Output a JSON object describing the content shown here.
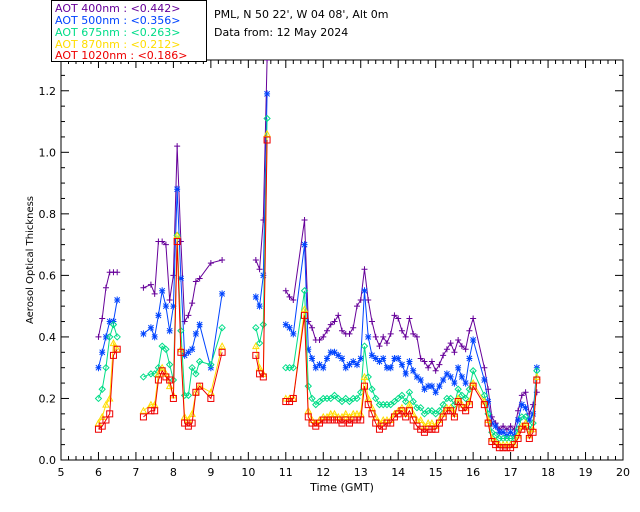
{
  "header": {
    "site": "PML, N 50 22', W 04 08', Alt 0m",
    "date": "Data from: 12 May 2024"
  },
  "chart_data": {
    "type": "line",
    "xlabel": "Time (GMT)",
    "ylabel": "Aerosol Optical Thickness",
    "xlim": [
      5,
      20
    ],
    "ylim": [
      0,
      1.3
    ],
    "xticks": [
      5,
      6,
      7,
      8,
      9,
      10,
      11,
      12,
      13,
      14,
      15,
      16,
      17,
      18,
      19,
      20
    ],
    "yticks": [
      0.0,
      0.2,
      0.4,
      0.6,
      0.8,
      1.0,
      1.2
    ],
    "ytick_labels": [
      "0.0",
      "0.2",
      "0.4",
      "0.6",
      "0.8",
      "1.0",
      "1.2"
    ],
    "legend_position": "top-left",
    "series": [
      {
        "name": "AOT  400nm : <0.442>",
        "color": "#660099",
        "marker": "plus",
        "x": [
          6.0,
          6.1,
          6.2,
          6.3,
          6.4,
          6.5,
          7.2,
          7.4,
          7.5,
          7.6,
          7.7,
          7.8,
          7.9,
          8.0,
          8.1,
          8.2,
          8.3,
          8.4,
          8.5,
          8.6,
          8.7,
          9.0,
          9.3,
          10.2,
          10.3,
          10.4,
          10.5,
          11.0,
          11.1,
          11.2,
          11.5,
          11.6,
          11.7,
          11.8,
          11.9,
          12.0,
          12.1,
          12.2,
          12.3,
          12.4,
          12.5,
          12.6,
          12.7,
          12.8,
          12.9,
          13.0,
          13.1,
          13.2,
          13.3,
          13.4,
          13.5,
          13.6,
          13.7,
          13.8,
          13.9,
          14.0,
          14.1,
          14.2,
          14.3,
          14.4,
          14.5,
          14.6,
          14.7,
          14.8,
          14.9,
          15.0,
          15.1,
          15.2,
          15.3,
          15.4,
          15.5,
          15.6,
          15.7,
          15.8,
          15.9,
          16.0,
          16.3,
          16.4,
          16.5,
          16.6,
          16.7,
          16.8,
          16.9,
          17.0,
          17.1,
          17.2,
          17.3,
          17.4,
          17.5,
          17.6,
          17.7
        ],
        "y": [
          0.4,
          0.46,
          0.56,
          0.61,
          0.61,
          0.61,
          0.56,
          0.57,
          0.54,
          0.71,
          0.71,
          0.7,
          0.52,
          0.6,
          1.02,
          0.71,
          0.45,
          0.47,
          0.51,
          0.58,
          0.59,
          0.64,
          0.65,
          0.65,
          0.62,
          0.78,
          1.3,
          0.55,
          0.53,
          0.52,
          0.78,
          0.45,
          0.43,
          0.39,
          0.39,
          0.4,
          0.42,
          0.44,
          0.45,
          0.47,
          0.42,
          0.41,
          0.41,
          0.43,
          0.5,
          0.52,
          0.62,
          0.52,
          0.45,
          0.4,
          0.37,
          0.4,
          0.38,
          0.41,
          0.47,
          0.46,
          0.42,
          0.4,
          0.46,
          0.41,
          0.4,
          0.33,
          0.32,
          0.3,
          0.32,
          0.29,
          0.31,
          0.34,
          0.36,
          0.38,
          0.35,
          0.39,
          0.37,
          0.36,
          0.42,
          0.46,
          0.3,
          0.23,
          0.14,
          0.12,
          0.1,
          0.11,
          0.1,
          0.11,
          0.1,
          0.16,
          0.21,
          0.22,
          0.15,
          0.18,
          0.22
        ]
      },
      {
        "name": "AOT  500nm : <0.356>",
        "color": "#0044ff",
        "marker": "asterisk",
        "x": [
          6.0,
          6.1,
          6.2,
          6.3,
          6.4,
          6.5,
          7.2,
          7.4,
          7.5,
          7.6,
          7.7,
          7.8,
          7.9,
          8.0,
          8.1,
          8.2,
          8.3,
          8.4,
          8.5,
          8.6,
          8.7,
          9.0,
          9.3,
          10.2,
          10.3,
          10.4,
          10.5,
          11.0,
          11.1,
          11.2,
          11.5,
          11.6,
          11.7,
          11.8,
          11.9,
          12.0,
          12.1,
          12.2,
          12.3,
          12.4,
          12.5,
          12.6,
          12.7,
          12.8,
          12.9,
          13.0,
          13.1,
          13.2,
          13.3,
          13.4,
          13.5,
          13.6,
          13.7,
          13.8,
          13.9,
          14.0,
          14.1,
          14.2,
          14.3,
          14.4,
          14.5,
          14.6,
          14.7,
          14.8,
          14.9,
          15.0,
          15.1,
          15.2,
          15.3,
          15.4,
          15.5,
          15.6,
          15.7,
          15.8,
          15.9,
          16.0,
          16.3,
          16.4,
          16.5,
          16.6,
          16.7,
          16.8,
          16.9,
          17.0,
          17.1,
          17.2,
          17.3,
          17.4,
          17.5,
          17.6,
          17.7
        ],
        "y": [
          0.3,
          0.35,
          0.4,
          0.45,
          0.45,
          0.52,
          0.41,
          0.43,
          0.4,
          0.47,
          0.55,
          0.5,
          0.42,
          0.5,
          0.88,
          0.59,
          0.34,
          0.35,
          0.36,
          0.41,
          0.44,
          0.3,
          0.54,
          0.53,
          0.5,
          0.6,
          1.19,
          0.44,
          0.43,
          0.41,
          0.7,
          0.36,
          0.33,
          0.3,
          0.31,
          0.3,
          0.33,
          0.35,
          0.35,
          0.34,
          0.33,
          0.3,
          0.31,
          0.32,
          0.31,
          0.33,
          0.55,
          0.4,
          0.34,
          0.33,
          0.32,
          0.33,
          0.3,
          0.3,
          0.33,
          0.33,
          0.31,
          0.28,
          0.32,
          0.29,
          0.27,
          0.26,
          0.23,
          0.24,
          0.24,
          0.22,
          0.24,
          0.26,
          0.28,
          0.27,
          0.25,
          0.3,
          0.27,
          0.25,
          0.33,
          0.39,
          0.26,
          0.19,
          0.12,
          0.11,
          0.09,
          0.09,
          0.08,
          0.09,
          0.08,
          0.13,
          0.18,
          0.17,
          0.13,
          0.15,
          0.3
        ]
      },
      {
        "name": "AOT  675nm : <0.263>",
        "color": "#00dd88",
        "marker": "diamond",
        "x": [
          6.0,
          6.1,
          6.2,
          6.3,
          6.4,
          6.5,
          7.2,
          7.4,
          7.5,
          7.6,
          7.7,
          7.8,
          7.9,
          8.0,
          8.1,
          8.2,
          8.3,
          8.4,
          8.5,
          8.6,
          8.7,
          9.0,
          9.3,
          10.2,
          10.3,
          10.4,
          10.5,
          11.0,
          11.1,
          11.2,
          11.5,
          11.6,
          11.7,
          11.8,
          11.9,
          12.0,
          12.1,
          12.2,
          12.3,
          12.4,
          12.5,
          12.6,
          12.7,
          12.8,
          12.9,
          13.0,
          13.1,
          13.2,
          13.3,
          13.4,
          13.5,
          13.6,
          13.7,
          13.8,
          13.9,
          14.0,
          14.1,
          14.2,
          14.3,
          14.4,
          14.5,
          14.6,
          14.7,
          14.8,
          14.9,
          15.0,
          15.1,
          15.2,
          15.3,
          15.4,
          15.5,
          15.6,
          15.7,
          15.8,
          15.9,
          16.0,
          16.3,
          16.4,
          16.5,
          16.6,
          16.7,
          16.8,
          16.9,
          17.0,
          17.1,
          17.2,
          17.3,
          17.4,
          17.5,
          17.6,
          17.7
        ],
        "y": [
          0.2,
          0.23,
          0.3,
          0.4,
          0.44,
          0.4,
          0.27,
          0.28,
          0.28,
          0.3,
          0.37,
          0.36,
          0.31,
          0.26,
          0.73,
          0.42,
          0.21,
          0.21,
          0.3,
          0.28,
          0.32,
          0.31,
          0.43,
          0.43,
          0.38,
          0.44,
          1.11,
          0.3,
          0.3,
          0.3,
          0.55,
          0.24,
          0.2,
          0.18,
          0.19,
          0.2,
          0.2,
          0.2,
          0.21,
          0.2,
          0.19,
          0.2,
          0.19,
          0.2,
          0.2,
          0.22,
          0.37,
          0.27,
          0.23,
          0.2,
          0.18,
          0.18,
          0.18,
          0.18,
          0.19,
          0.2,
          0.21,
          0.19,
          0.22,
          0.19,
          0.17,
          0.17,
          0.15,
          0.16,
          0.16,
          0.15,
          0.16,
          0.18,
          0.2,
          0.2,
          0.18,
          0.23,
          0.21,
          0.2,
          0.23,
          0.29,
          0.21,
          0.15,
          0.09,
          0.08,
          0.07,
          0.07,
          0.07,
          0.07,
          0.07,
          0.1,
          0.14,
          0.14,
          0.1,
          0.12,
          0.29
        ]
      },
      {
        "name": "AOT  870nm : <0.212>",
        "color": "#ffdd00",
        "marker": "triangle",
        "x": [
          6.0,
          6.1,
          6.2,
          6.3,
          6.4,
          6.5,
          7.2,
          7.4,
          7.5,
          7.6,
          7.7,
          7.8,
          7.9,
          8.0,
          8.1,
          8.2,
          8.3,
          8.4,
          8.5,
          8.6,
          8.7,
          9.0,
          9.3,
          10.2,
          10.3,
          10.4,
          10.5,
          11.0,
          11.1,
          11.2,
          11.5,
          11.6,
          11.7,
          11.8,
          11.9,
          12.0,
          12.1,
          12.2,
          12.3,
          12.4,
          12.5,
          12.6,
          12.7,
          12.8,
          12.9,
          13.0,
          13.1,
          13.2,
          13.3,
          13.4,
          13.5,
          13.6,
          13.7,
          13.8,
          13.9,
          14.0,
          14.1,
          14.2,
          14.3,
          14.4,
          14.5,
          14.6,
          14.7,
          14.8,
          14.9,
          15.0,
          15.1,
          15.2,
          15.3,
          15.4,
          15.5,
          15.6,
          15.7,
          15.8,
          15.9,
          16.0,
          16.3,
          16.4,
          16.5,
          16.6,
          16.7,
          16.8,
          16.9,
          17.0,
          17.1,
          17.2,
          17.3,
          17.4,
          17.5,
          17.6,
          17.7
        ],
        "y": [
          0.12,
          0.14,
          0.18,
          0.2,
          0.38,
          0.36,
          0.16,
          0.18,
          0.18,
          0.28,
          0.3,
          0.28,
          0.24,
          0.21,
          0.73,
          0.36,
          0.14,
          0.13,
          0.15,
          0.22,
          0.24,
          0.22,
          0.37,
          0.37,
          0.3,
          0.28,
          1.06,
          0.2,
          0.2,
          0.2,
          0.49,
          0.16,
          0.13,
          0.12,
          0.13,
          0.14,
          0.14,
          0.15,
          0.15,
          0.14,
          0.14,
          0.15,
          0.14,
          0.15,
          0.15,
          0.15,
          0.27,
          0.2,
          0.17,
          0.14,
          0.12,
          0.13,
          0.13,
          0.13,
          0.15,
          0.16,
          0.17,
          0.15,
          0.18,
          0.15,
          0.13,
          0.13,
          0.11,
          0.12,
          0.12,
          0.11,
          0.13,
          0.15,
          0.17,
          0.17,
          0.15,
          0.2,
          0.18,
          0.17,
          0.19,
          0.25,
          0.19,
          0.13,
          0.07,
          0.06,
          0.05,
          0.05,
          0.05,
          0.05,
          0.05,
          0.08,
          0.11,
          0.12,
          0.08,
          0.1,
          0.27
        ]
      },
      {
        "name": "AOT 1020nm : <0.186>",
        "color": "#ee0000",
        "marker": "square",
        "x": [
          6.0,
          6.1,
          6.2,
          6.3,
          6.4,
          6.5,
          7.2,
          7.4,
          7.5,
          7.6,
          7.7,
          7.8,
          7.9,
          8.0,
          8.1,
          8.2,
          8.3,
          8.4,
          8.5,
          8.6,
          8.7,
          9.0,
          9.3,
          10.2,
          10.3,
          10.4,
          10.5,
          11.0,
          11.1,
          11.2,
          11.5,
          11.6,
          11.7,
          11.8,
          11.9,
          12.0,
          12.1,
          12.2,
          12.3,
          12.4,
          12.5,
          12.6,
          12.7,
          12.8,
          12.9,
          13.0,
          13.1,
          13.2,
          13.3,
          13.4,
          13.5,
          13.6,
          13.7,
          13.8,
          13.9,
          14.0,
          14.1,
          14.2,
          14.3,
          14.4,
          14.5,
          14.6,
          14.7,
          14.8,
          14.9,
          15.0,
          15.1,
          15.2,
          15.3,
          15.4,
          15.5,
          15.6,
          15.7,
          15.8,
          15.9,
          16.0,
          16.3,
          16.4,
          16.5,
          16.6,
          16.7,
          16.8,
          16.9,
          17.0,
          17.1,
          17.2,
          17.3,
          17.4,
          17.5,
          17.6,
          17.7
        ],
        "y": [
          0.1,
          0.11,
          0.13,
          0.15,
          0.34,
          0.36,
          0.14,
          0.16,
          0.16,
          0.26,
          0.29,
          0.27,
          0.26,
          0.2,
          0.71,
          0.35,
          0.12,
          0.11,
          0.12,
          0.22,
          0.24,
          0.2,
          0.35,
          0.34,
          0.28,
          0.27,
          1.04,
          0.19,
          0.19,
          0.2,
          0.47,
          0.14,
          0.12,
          0.11,
          0.12,
          0.13,
          0.13,
          0.13,
          0.13,
          0.13,
          0.12,
          0.13,
          0.12,
          0.13,
          0.13,
          0.13,
          0.24,
          0.18,
          0.15,
          0.12,
          0.1,
          0.11,
          0.12,
          0.12,
          0.14,
          0.15,
          0.16,
          0.14,
          0.16,
          0.13,
          0.11,
          0.1,
          0.09,
          0.1,
          0.1,
          0.1,
          0.12,
          0.14,
          0.16,
          0.16,
          0.14,
          0.19,
          0.17,
          0.16,
          0.18,
          0.24,
          0.18,
          0.12,
          0.06,
          0.05,
          0.04,
          0.04,
          0.04,
          0.04,
          0.05,
          0.07,
          0.1,
          0.11,
          0.07,
          0.09,
          0.26
        ]
      }
    ]
  }
}
